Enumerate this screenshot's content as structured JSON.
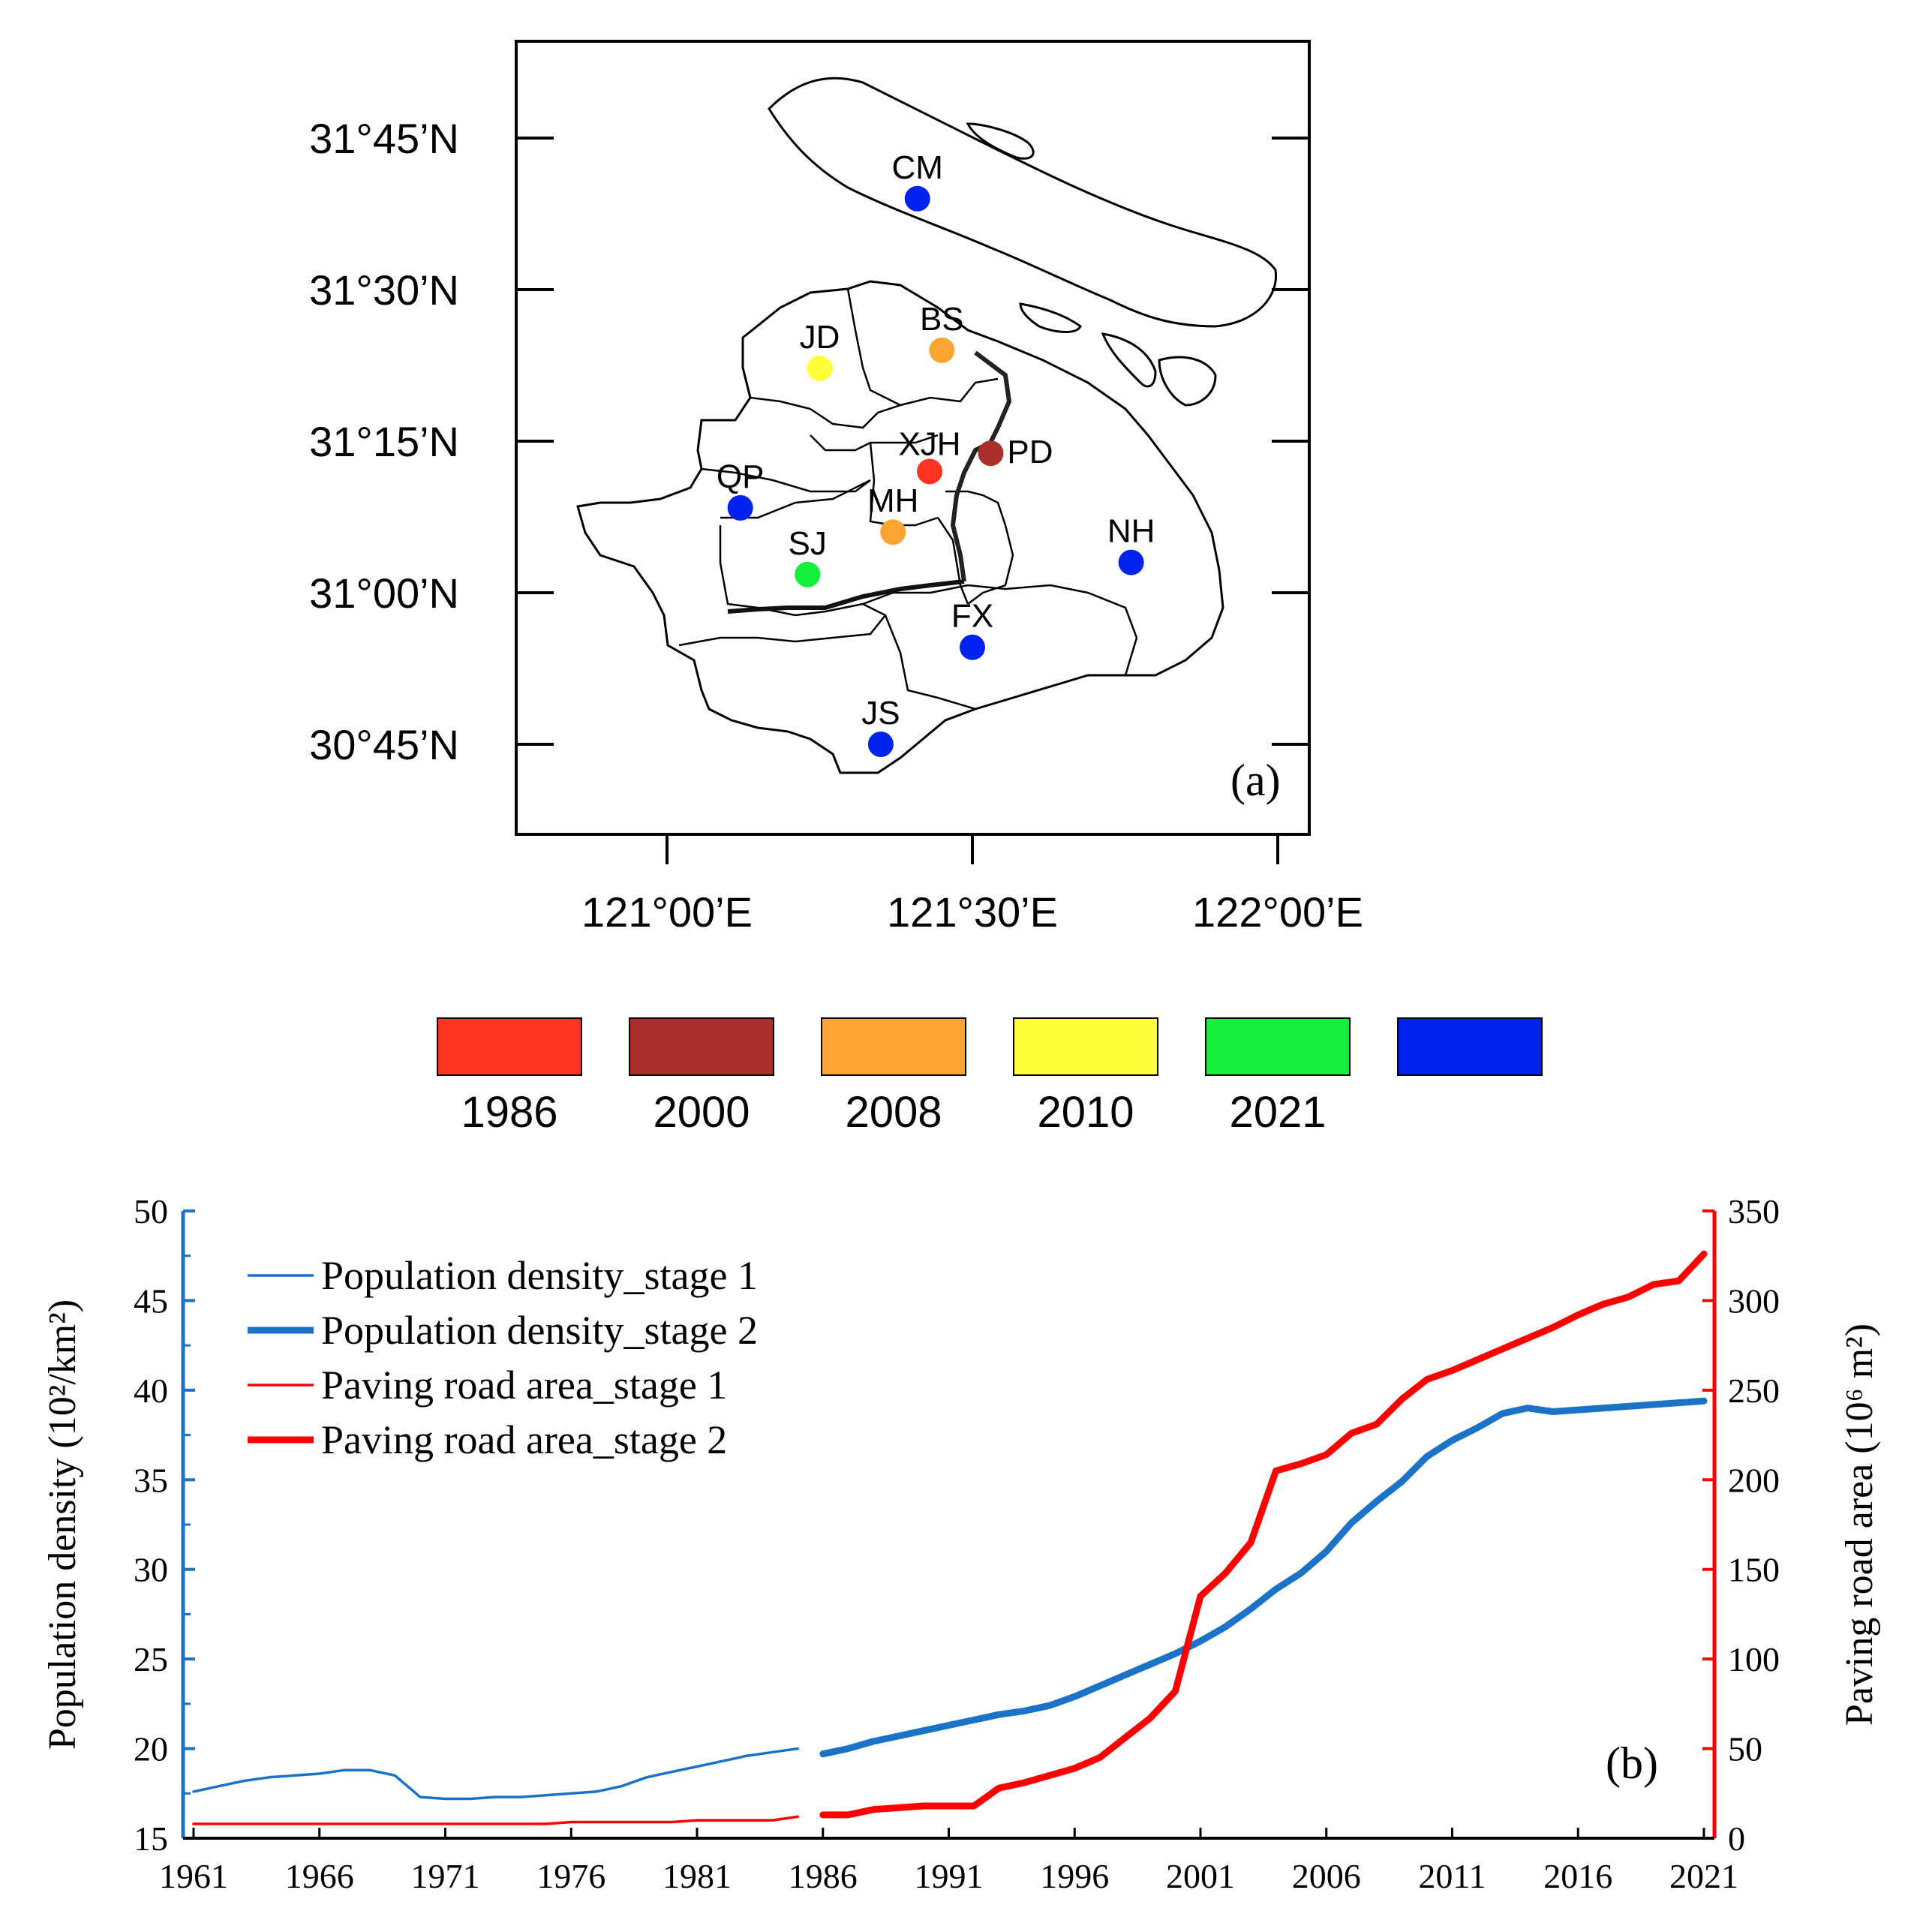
{
  "figure": {
    "panel_a_label": "(a)",
    "panel_b_label": "(b)"
  },
  "colors": {
    "1986": "#ff3322",
    "2000": "#aa302c",
    "2008": "#ffa332",
    "2010": "#ffff3a",
    "2021": "#14ee3c",
    "rural": "#0022ee",
    "pop_line": "#1a73c7",
    "road_line": "#ff0000"
  },
  "chart_data": [
    {
      "type": "map",
      "panel": "(a)",
      "lat_ticks": [
        "31°45’N",
        "31°30’N",
        "31°15’N",
        "31°00’N",
        "30°45’N"
      ],
      "lat_values": [
        31.75,
        31.5,
        31.25,
        31.0,
        30.75
      ],
      "lon_ticks": [
        "121°00’E",
        "121°30’E",
        "122°00’E"
      ],
      "lon_values": [
        121.0,
        121.5,
        122.0
      ],
      "stations": [
        {
          "name": "CM",
          "lon": 121.41,
          "lat": 31.65,
          "category": "rural"
        },
        {
          "name": "BS",
          "lon": 121.45,
          "lat": 31.4,
          "category": "2008"
        },
        {
          "name": "JD",
          "lon": 121.25,
          "lat": 31.37,
          "category": "2010"
        },
        {
          "name": "XJH",
          "lon": 121.43,
          "lat": 31.2,
          "category": "1986"
        },
        {
          "name": "PD",
          "lon": 121.53,
          "lat": 31.23,
          "category": "2000"
        },
        {
          "name": "QP",
          "lon": 121.12,
          "lat": 31.14,
          "category": "rural"
        },
        {
          "name": "MH",
          "lon": 121.37,
          "lat": 31.1,
          "category": "2008"
        },
        {
          "name": "SJ",
          "lon": 121.23,
          "lat": 31.03,
          "category": "2021"
        },
        {
          "name": "NH",
          "lon": 121.76,
          "lat": 31.05,
          "category": "rural"
        },
        {
          "name": "FX",
          "lon": 121.5,
          "lat": 30.91,
          "category": "rural"
        },
        {
          "name": "JS",
          "lon": 121.35,
          "lat": 30.75,
          "category": "rural"
        }
      ],
      "legend": [
        {
          "label": "1986",
          "category": "1986"
        },
        {
          "label": "2000",
          "category": "2000"
        },
        {
          "label": "2008",
          "category": "2008"
        },
        {
          "label": "2010",
          "category": "2010"
        },
        {
          "label": "2021",
          "category": "2021"
        },
        {
          "label": "",
          "category": "rural"
        }
      ]
    },
    {
      "type": "line",
      "panel": "(b)",
      "xlim": [
        1961,
        2021
      ],
      "x_ticks": [
        1961,
        1966,
        1971,
        1976,
        1981,
        1986,
        1991,
        1996,
        2001,
        2006,
        2011,
        2016,
        2021
      ],
      "ylabel_left": "Population density (10²/km²)",
      "ylim_left": [
        15,
        50
      ],
      "y_ticks_left": [
        15,
        20,
        25,
        30,
        35,
        40,
        45,
        50
      ],
      "ylabel_right": "Paving road area (10⁶ m²)",
      "ylim_right": [
        0,
        350
      ],
      "y_ticks_right": [
        0,
        50,
        100,
        150,
        200,
        250,
        300,
        350
      ],
      "series": [
        {
          "name": "Population density_stage 1",
          "axis": "left",
          "style": "thin",
          "x": [
            1961,
            1962,
            1963,
            1964,
            1965,
            1966,
            1967,
            1968,
            1969,
            1970,
            1971,
            1972,
            1973,
            1974,
            1975,
            1976,
            1977,
            1978,
            1979,
            1980,
            1981,
            1982,
            1983,
            1984,
            1985
          ],
          "values": [
            17.6,
            17.9,
            18.2,
            18.4,
            18.5,
            18.6,
            18.8,
            18.8,
            18.5,
            17.3,
            17.2,
            17.2,
            17.3,
            17.3,
            17.4,
            17.5,
            17.6,
            17.9,
            18.4,
            18.7,
            19.0,
            19.3,
            19.6,
            19.8,
            20.0
          ]
        },
        {
          "name": "Population density_stage 2",
          "axis": "left",
          "style": "thick",
          "x": [
            1986,
            1987,
            1988,
            1989,
            1990,
            1991,
            1992,
            1993,
            1994,
            1995,
            1996,
            1997,
            1998,
            1999,
            2000,
            2001,
            2002,
            2003,
            2004,
            2005,
            2006,
            2007,
            2008,
            2009,
            2010,
            2011,
            2012,
            2013,
            2014,
            2015,
            2016,
            2017,
            2018,
            2019,
            2020,
            2021
          ],
          "values": [
            19.7,
            20.0,
            20.4,
            20.7,
            21.0,
            21.3,
            21.6,
            21.9,
            22.1,
            22.4,
            22.9,
            23.5,
            24.1,
            24.7,
            25.3,
            26.0,
            26.8,
            27.8,
            28.9,
            29.8,
            31.0,
            32.6,
            33.8,
            34.9,
            36.3,
            37.2,
            37.9,
            38.7,
            39.0,
            38.8,
            38.9,
            39.0,
            39.1,
            39.2,
            39.3,
            39.4
          ]
        },
        {
          "name": "Paving road area_stage 1",
          "axis": "right",
          "style": "thin",
          "x": [
            1961,
            1962,
            1963,
            1964,
            1965,
            1966,
            1967,
            1968,
            1969,
            1970,
            1971,
            1972,
            1973,
            1974,
            1975,
            1976,
            1977,
            1978,
            1979,
            1980,
            1981,
            1982,
            1983,
            1984,
            1985
          ],
          "values": [
            8,
            8,
            8,
            8,
            8,
            8,
            8,
            8,
            8,
            8,
            8,
            8,
            8,
            8,
            8,
            9,
            9,
            9,
            9,
            9,
            10,
            10,
            10,
            10,
            12
          ]
        },
        {
          "name": "Paving road area_stage 2",
          "axis": "right",
          "style": "thick",
          "x": [
            1986,
            1987,
            1988,
            1989,
            1990,
            1991,
            1992,
            1993,
            1994,
            1995,
            1996,
            1997,
            1998,
            1999,
            2000,
            2001,
            2002,
            2003,
            2004,
            2005,
            2006,
            2007,
            2008,
            2009,
            2010,
            2011,
            2012,
            2013,
            2014,
            2015,
            2016,
            2017,
            2018,
            2019,
            2020,
            2021
          ],
          "values": [
            13,
            13,
            16,
            17,
            18,
            18,
            18,
            28,
            31,
            35,
            39,
            45,
            56,
            67,
            82,
            135,
            148,
            165,
            205,
            209,
            214,
            226,
            231,
            245,
            256,
            261,
            267,
            273,
            279,
            285,
            292,
            298,
            302,
            309,
            311,
            326
          ]
        }
      ]
    }
  ]
}
